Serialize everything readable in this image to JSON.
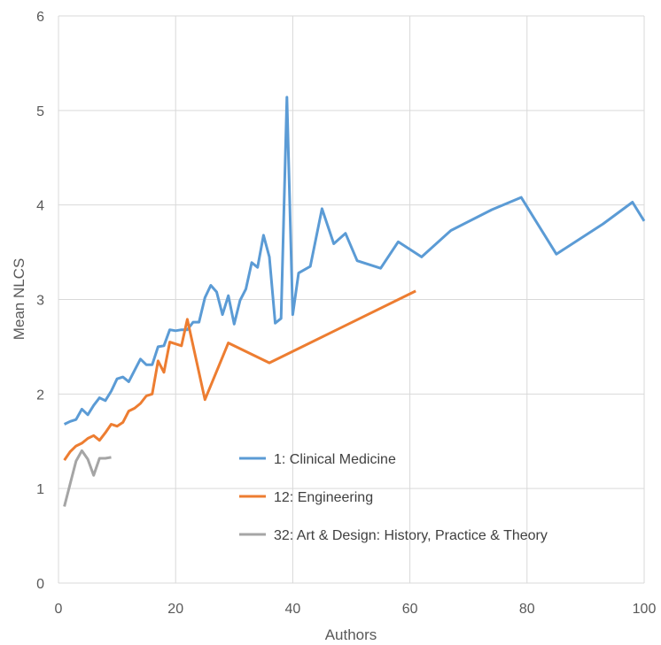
{
  "chart_data": {
    "type": "line",
    "title": "",
    "xlabel": "Authors",
    "ylabel": "Mean NLCS",
    "xlim": [
      0,
      100
    ],
    "ylim": [
      0,
      6
    ],
    "x_ticks": [
      0,
      20,
      40,
      60,
      80,
      100
    ],
    "y_ticks": [
      0,
      1,
      2,
      3,
      4,
      5,
      6
    ],
    "x_tick_labels": [
      "0",
      "20",
      "40",
      "60",
      "80",
      "100"
    ],
    "y_tick_labels": [
      "0",
      "1",
      "2",
      "3",
      "4",
      "5",
      "6"
    ],
    "grid": true,
    "legend_position": "bottom-center",
    "series": [
      {
        "name": "1: Clinical Medicine",
        "color": "#5B9BD5",
        "points": [
          [
            1,
            1.68
          ],
          [
            2,
            1.71
          ],
          [
            3,
            1.73
          ],
          [
            4,
            1.84
          ],
          [
            5,
            1.78
          ],
          [
            6,
            1.88
          ],
          [
            7,
            1.96
          ],
          [
            8,
            1.93
          ],
          [
            9,
            2.03
          ],
          [
            10,
            2.16
          ],
          [
            11,
            2.18
          ],
          [
            12,
            2.13
          ],
          [
            13,
            2.25
          ],
          [
            14,
            2.37
          ],
          [
            15,
            2.31
          ],
          [
            16,
            2.31
          ],
          [
            17,
            2.5
          ],
          [
            18,
            2.51
          ],
          [
            19,
            2.68
          ],
          [
            20,
            2.67
          ],
          [
            21,
            2.68
          ],
          [
            22,
            2.68
          ],
          [
            23,
            2.76
          ],
          [
            24,
            2.76
          ],
          [
            25,
            3.02
          ],
          [
            26,
            3.15
          ],
          [
            27,
            3.08
          ],
          [
            28,
            2.84
          ],
          [
            29,
            3.04
          ],
          [
            30,
            2.74
          ],
          [
            31,
            2.99
          ],
          [
            32,
            3.11
          ],
          [
            33,
            3.39
          ],
          [
            34,
            3.34
          ],
          [
            35,
            3.68
          ],
          [
            36,
            3.45
          ],
          [
            37,
            2.75
          ],
          [
            38,
            2.8
          ],
          [
            39,
            5.14
          ],
          [
            40,
            2.84
          ],
          [
            41,
            3.28
          ],
          [
            43,
            3.35
          ],
          [
            45,
            3.96
          ],
          [
            47,
            3.59
          ],
          [
            49,
            3.7
          ],
          [
            51,
            3.41
          ],
          [
            55,
            3.33
          ],
          [
            58,
            3.61
          ],
          [
            62,
            3.45
          ],
          [
            67,
            3.73
          ],
          [
            74,
            3.95
          ],
          [
            79,
            4.08
          ],
          [
            85,
            3.48
          ],
          [
            93,
            3.8
          ],
          [
            98,
            4.03
          ],
          [
            100,
            3.83
          ]
        ]
      },
      {
        "name": "12: Engineering",
        "color": "#ED7D31",
        "points": [
          [
            1,
            1.3
          ],
          [
            2,
            1.39
          ],
          [
            3,
            1.45
          ],
          [
            4,
            1.48
          ],
          [
            5,
            1.53
          ],
          [
            6,
            1.56
          ],
          [
            7,
            1.51
          ],
          [
            8,
            1.59
          ],
          [
            9,
            1.68
          ],
          [
            10,
            1.66
          ],
          [
            11,
            1.7
          ],
          [
            12,
            1.82
          ],
          [
            13,
            1.85
          ],
          [
            14,
            1.9
          ],
          [
            15,
            1.98
          ],
          [
            16,
            2.0
          ],
          [
            17,
            2.35
          ],
          [
            18,
            2.23
          ],
          [
            19,
            2.55
          ],
          [
            20,
            2.53
          ],
          [
            21,
            2.51
          ],
          [
            22,
            2.79
          ],
          [
            25,
            1.94
          ],
          [
            29,
            2.54
          ],
          [
            36,
            2.33
          ],
          [
            61,
            3.09
          ]
        ]
      },
      {
        "name": "32: Art & Design: History, Practice & Theory",
        "color": "#A5A5A5",
        "points": [
          [
            1,
            0.81
          ],
          [
            2,
            1.05
          ],
          [
            3,
            1.29
          ],
          [
            4,
            1.4
          ],
          [
            5,
            1.31
          ],
          [
            6,
            1.14
          ],
          [
            7,
            1.32
          ],
          [
            8,
            1.32
          ],
          [
            9,
            1.33
          ]
        ]
      }
    ]
  }
}
